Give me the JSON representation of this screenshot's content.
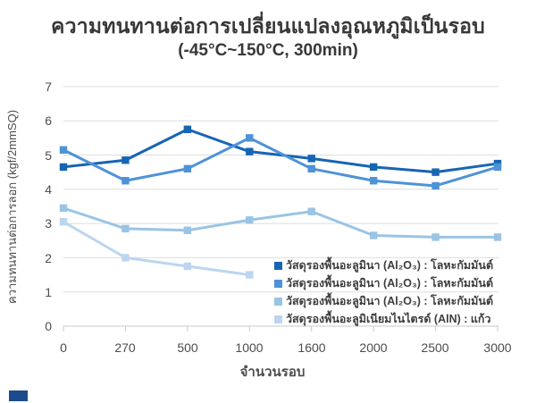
{
  "title": {
    "line1": "ความทนทานต่อการเปลี่ยนแปลงอุณหภูมิเป็นรอบ",
    "line2": "(-45°C~150°C, 300min)"
  },
  "chart_data": {
    "type": "line",
    "categories": [
      "0",
      "270",
      "500",
      "1000",
      "1600",
      "2000",
      "2500",
      "3000"
    ],
    "series": [
      {
        "label": "วัสดุรองพื้นอะลูมินา (Al₂O₃) : โลหะกัมมันต์",
        "color": "#1665b3",
        "values": [
          4.65,
          4.85,
          5.75,
          5.1,
          4.9,
          4.65,
          4.5,
          4.75
        ]
      },
      {
        "label": "วัสดุรองพื้นอะลูมินา (Al₂O₃) : โลหะกัมมันต์",
        "color": "#4e92d8",
        "values": [
          5.15,
          4.25,
          4.6,
          5.5,
          4.6,
          4.25,
          4.1,
          4.65
        ]
      },
      {
        "label": "วัสดุรองพื้นอะลูมินา (Al₂O₃) : โลหะกัมมันต์",
        "color": "#9ac4e4",
        "values": [
          3.45,
          2.85,
          2.8,
          3.1,
          3.35,
          2.65,
          2.6,
          2.6
        ]
      },
      {
        "label": "วัสดุรองพื้นอะลูมิเนียมไนไตรด์ (AlN) : แก้ว",
        "color": "#bdd5ee",
        "values": [
          3.05,
          2.0,
          1.75,
          1.5,
          null,
          null,
          null,
          null
        ]
      }
    ],
    "xlabel": "จำนวนรอบ",
    "ylabel": "ความทนทานต่อการลอก (kgf/2mmSQ)",
    "ylim": [
      0,
      7
    ],
    "yticks": [
      "0",
      "1",
      "2",
      "3",
      "4",
      "5",
      "6",
      "7"
    ],
    "grid": true,
    "legend_position": "inside-bottom-right",
    "marker": "square"
  },
  "colors": {
    "background": "#ffffff",
    "grid": "#dedede",
    "axis": "#c9c9c9",
    "title_text": "#383838",
    "tick_text": "#4d4d4d",
    "brand_mark": "#1a4b8c"
  }
}
